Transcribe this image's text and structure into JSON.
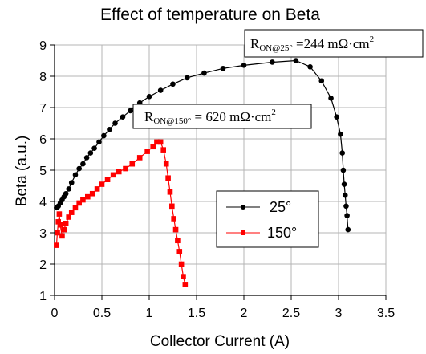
{
  "chart_data": {
    "type": "line",
    "title": "Effect of temperature on Beta",
    "xlabel": "Collector Current (A)",
    "ylabel": "Beta (a.u.)",
    "xlim": [
      0,
      3.5
    ],
    "ylim": [
      1,
      9
    ],
    "xticks": [
      "0",
      "0.5",
      "1",
      "1.5",
      "2",
      "2.5",
      "3",
      "3.5"
    ],
    "yticks": [
      "1",
      "2",
      "3",
      "4",
      "5",
      "6",
      "7",
      "8",
      "9"
    ],
    "grid": true,
    "legend_position": "center-right",
    "series": [
      {
        "name": "25°",
        "color": "#000000",
        "marker": "circle",
        "points": [
          [
            0.02,
            3.8
          ],
          [
            0.04,
            3.85
          ],
          [
            0.06,
            3.95
          ],
          [
            0.08,
            4.05
          ],
          [
            0.1,
            4.15
          ],
          [
            0.12,
            4.25
          ],
          [
            0.15,
            4.4
          ],
          [
            0.18,
            4.6
          ],
          [
            0.22,
            4.85
          ],
          [
            0.26,
            5.05
          ],
          [
            0.3,
            5.2
          ],
          [
            0.34,
            5.4
          ],
          [
            0.38,
            5.55
          ],
          [
            0.42,
            5.7
          ],
          [
            0.47,
            5.9
          ],
          [
            0.52,
            6.1
          ],
          [
            0.58,
            6.3
          ],
          [
            0.64,
            6.5
          ],
          [
            0.72,
            6.7
          ],
          [
            0.8,
            6.9
          ],
          [
            0.9,
            7.15
          ],
          [
            1.0,
            7.35
          ],
          [
            1.12,
            7.55
          ],
          [
            1.25,
            7.75
          ],
          [
            1.4,
            7.95
          ],
          [
            1.58,
            8.1
          ],
          [
            1.78,
            8.25
          ],
          [
            2.0,
            8.35
          ],
          [
            2.3,
            8.45
          ],
          [
            2.55,
            8.5
          ],
          [
            2.7,
            8.3
          ],
          [
            2.82,
            7.85
          ],
          [
            2.92,
            7.3
          ],
          [
            2.98,
            6.7
          ],
          [
            3.02,
            6.15
          ],
          [
            3.04,
            5.55
          ],
          [
            3.05,
            5.0
          ],
          [
            3.06,
            4.55
          ],
          [
            3.07,
            4.2
          ],
          [
            3.08,
            3.85
          ],
          [
            3.09,
            3.55
          ],
          [
            3.1,
            3.1
          ]
        ]
      },
      {
        "name": "150°",
        "color": "#ff0000",
        "marker": "square",
        "points": [
          [
            0.02,
            2.6
          ],
          [
            0.03,
            3.0
          ],
          [
            0.04,
            3.35
          ],
          [
            0.05,
            3.6
          ],
          [
            0.06,
            3.25
          ],
          [
            0.08,
            2.9
          ],
          [
            0.1,
            3.1
          ],
          [
            0.12,
            3.3
          ],
          [
            0.15,
            3.5
          ],
          [
            0.18,
            3.65
          ],
          [
            0.22,
            3.8
          ],
          [
            0.26,
            3.95
          ],
          [
            0.3,
            4.05
          ],
          [
            0.35,
            4.15
          ],
          [
            0.4,
            4.25
          ],
          [
            0.45,
            4.4
          ],
          [
            0.5,
            4.55
          ],
          [
            0.56,
            4.7
          ],
          [
            0.62,
            4.85
          ],
          [
            0.68,
            4.95
          ],
          [
            0.75,
            5.05
          ],
          [
            0.82,
            5.2
          ],
          [
            0.9,
            5.4
          ],
          [
            0.98,
            5.6
          ],
          [
            1.04,
            5.75
          ],
          [
            1.08,
            5.9
          ],
          [
            1.12,
            5.9
          ],
          [
            1.15,
            5.65
          ],
          [
            1.18,
            5.2
          ],
          [
            1.2,
            4.75
          ],
          [
            1.22,
            4.3
          ],
          [
            1.24,
            3.85
          ],
          [
            1.26,
            3.45
          ],
          [
            1.28,
            3.1
          ],
          [
            1.3,
            2.75
          ],
          [
            1.32,
            2.4
          ],
          [
            1.34,
            2.0
          ],
          [
            1.36,
            1.6
          ],
          [
            1.38,
            1.35
          ]
        ]
      }
    ],
    "annotations": [
      {
        "main": "R",
        "sub": "ON@25°",
        "value": " =244 mΩ·cm",
        "sup": "2"
      },
      {
        "main": "R",
        "sub": "ON@150°",
        "value": " = 620 mΩ·cm",
        "sup": "2"
      }
    ]
  }
}
